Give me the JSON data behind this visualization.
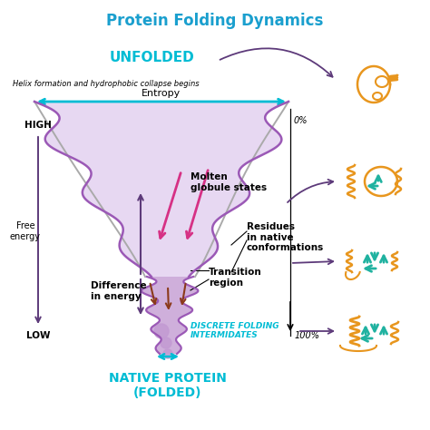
{
  "title": "Protein Folding Dynamics",
  "title_color": "#1a9fce",
  "title_fontsize": 12,
  "bg_color": "#ffffff",
  "unfolded_text": "UNFOLDED",
  "unfolded_color": "#00bcd4",
  "subtitle_text": "Helix formation and hydrophobic collapse begins",
  "entropy_text": "Entropy",
  "high_text": "HIGH",
  "low_text": "LOW",
  "free_energy_text": "Free\nenergy",
  "molten_text": "Molten\nglobule states",
  "transition_text": "Transition\nregion",
  "residues_text": "Residues\nin native\nconformations",
  "difference_text": "Difference\nin energy",
  "discrete_text": "DISCRETE FOLDING\nINTERMIDATES",
  "discrete_color": "#00bcd4",
  "native_text": "NATIVE PROTEIN\n(FOLDED)",
  "native_color": "#00bcd4",
  "percent_0": "0%",
  "percent_100": "100%",
  "funnel_color": "#9b59b6",
  "funnel_fill": "#d5b8e8",
  "funnel_deep_fill": "#c39bd3",
  "pink_arrow_color": "#d63185",
  "dark_arrow_color": "#5d3a7a",
  "brown_arrow_color": "#8b3a1a",
  "cyan_arrow_color": "#00bcd4",
  "orange_color": "#e8961e",
  "teal_color": "#20b2a0"
}
